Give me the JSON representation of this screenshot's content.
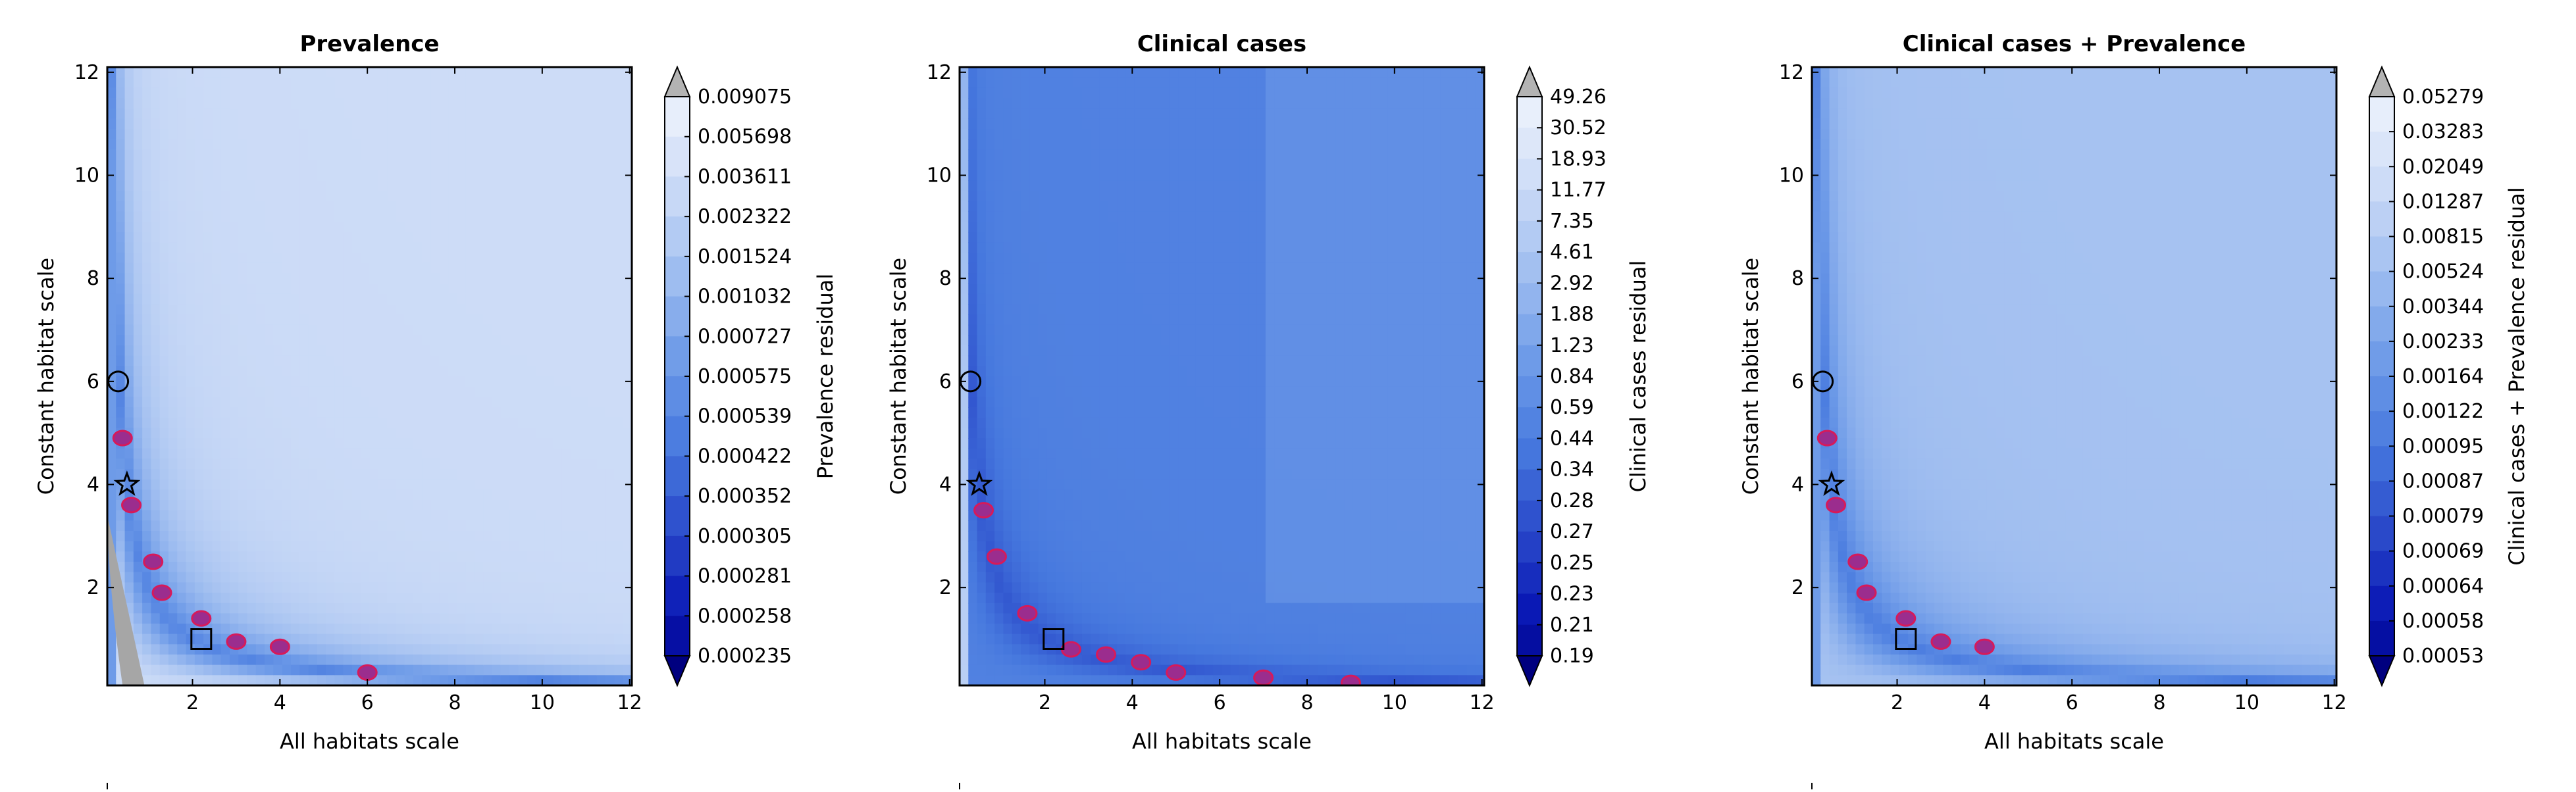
{
  "chart_data": [
    {
      "type": "heatmap",
      "title": "Prevalence",
      "xlabel": "All habitats scale",
      "ylabel": "Constant habitat scale",
      "colorbar_label": "Prevalence residual",
      "x_ticks": [
        "2",
        "4",
        "6",
        "8",
        "10",
        "12"
      ],
      "y_ticks": [
        "2",
        "4",
        "6",
        "8",
        "10",
        "12"
      ],
      "xlim": [
        0.05,
        12.05
      ],
      "ylim": [
        0.1,
        12.1
      ],
      "colorbar_levels": [
        "0.009075",
        "0.005698",
        "0.003611",
        "0.002322",
        "0.001524",
        "0.001032",
        "0.000727",
        "0.000575",
        "0.000539",
        "0.000422",
        "0.000352",
        "0.000305",
        "0.000281",
        "0.000258",
        "0.000235"
      ],
      "bottom_region_value": 0.00028,
      "gray_region": true,
      "markers": [
        {
          "shape": "circle",
          "x": 0.3,
          "y": 6.0
        },
        {
          "shape": "star",
          "x": 0.5,
          "y": 4.0
        },
        {
          "shape": "square",
          "x": 2.2,
          "y": 1.0
        }
      ],
      "highlight_points": [
        [
          0.4,
          4.9
        ],
        [
          0.6,
          3.6
        ],
        [
          1.1,
          2.5
        ],
        [
          1.3,
          1.9
        ],
        [
          2.2,
          1.4
        ],
        [
          3.0,
          0.95
        ],
        [
          4.0,
          0.85
        ],
        [
          6.0,
          0.35
        ]
      ]
    },
    {
      "type": "heatmap",
      "title": "Clinical cases",
      "xlabel": "All habitats scale",
      "ylabel": "Constant habitat scale",
      "colorbar_label": "Clinical cases residual",
      "x_ticks": [
        "2",
        "4",
        "6",
        "8",
        "10",
        "12"
      ],
      "y_ticks": [
        "2",
        "4",
        "6",
        "8",
        "10",
        "12"
      ],
      "xlim": [
        0.05,
        12.05
      ],
      "ylim": [
        0.1,
        12.1
      ],
      "colorbar_levels": [
        "49.26",
        "30.52",
        "18.93",
        "11.77",
        "7.35",
        "4.61",
        "2.92",
        "1.88",
        "1.23",
        "0.84",
        "0.59",
        "0.44",
        "0.34",
        "0.28",
        "0.27",
        "0.25",
        "0.23",
        "0.21",
        "0.19"
      ],
      "bottom_region_value": 0.25,
      "gray_region": false,
      "markers": [
        {
          "shape": "circle",
          "x": 0.3,
          "y": 6.0
        },
        {
          "shape": "star",
          "x": 0.5,
          "y": 4.0
        },
        {
          "shape": "square",
          "x": 2.2,
          "y": 1.0
        }
      ],
      "highlight_points": [
        [
          0.6,
          3.5
        ],
        [
          0.9,
          2.6
        ],
        [
          1.6,
          1.5
        ],
        [
          2.6,
          0.8
        ],
        [
          3.4,
          0.7
        ],
        [
          4.2,
          0.55
        ],
        [
          5.0,
          0.35
        ],
        [
          7.0,
          0.25
        ],
        [
          9.0,
          0.15
        ]
      ]
    },
    {
      "type": "heatmap",
      "title": "Clinical cases + Prevalence",
      "xlabel": "All habitats scale",
      "ylabel": "Constant habitat scale",
      "colorbar_label": "Clinical cases + Prevalence residual",
      "x_ticks": [
        "2",
        "4",
        "6",
        "8",
        "10",
        "12"
      ],
      "y_ticks": [
        "2",
        "4",
        "6",
        "8",
        "10",
        "12"
      ],
      "xlim": [
        0.05,
        12.05
      ],
      "ylim": [
        0.1,
        12.1
      ],
      "colorbar_levels": [
        "0.05279",
        "0.03283",
        "0.02049",
        "0.01287",
        "0.00815",
        "0.00524",
        "0.00344",
        "0.00233",
        "0.00164",
        "0.00122",
        "0.00095",
        "0.00087",
        "0.00079",
        "0.00069",
        "0.00064",
        "0.00058",
        "0.00053"
      ],
      "bottom_region_value": 0.0007,
      "gray_region": false,
      "markers": [
        {
          "shape": "circle",
          "x": 0.3,
          "y": 6.0
        },
        {
          "shape": "star",
          "x": 0.5,
          "y": 4.0
        },
        {
          "shape": "square",
          "x": 2.2,
          "y": 1.0
        }
      ],
      "highlight_points": [
        [
          0.4,
          4.9
        ],
        [
          0.6,
          3.6
        ],
        [
          1.1,
          2.5
        ],
        [
          1.3,
          1.9
        ],
        [
          2.2,
          1.4
        ],
        [
          3.0,
          0.95
        ],
        [
          4.0,
          0.85
        ]
      ]
    }
  ],
  "colors": {
    "max_extend": "#b3b3b3",
    "min_extend": "#00007f",
    "highlight": "#9b2d8e",
    "highlight_edge": "#d61a5a",
    "gray_region": "#a6a6a6"
  }
}
